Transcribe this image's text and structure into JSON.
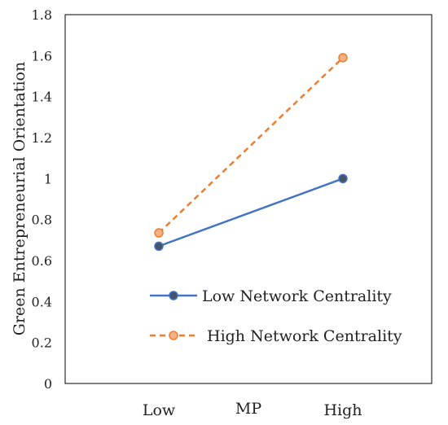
{
  "chart_data": {
    "type": "line",
    "ylabel": "Green Entrepreneurial Orientation",
    "xlabel": "MP",
    "categories": [
      "Low",
      "High"
    ],
    "ylim": [
      0,
      1.8
    ],
    "yticks": [
      "0",
      "0.2",
      "0.4",
      "0.6",
      "0.8",
      "1",
      "1.2",
      "1.4",
      "1.6",
      "1.8"
    ],
    "grid": false,
    "legend_position": "lower-right",
    "series": [
      {
        "name": "Low Network Centrality",
        "values": [
          0.67,
          1.0
        ],
        "color": "#4472C4",
        "marker_color": "#44546A",
        "dash": "solid"
      },
      {
        "name": "High Network Centrality",
        "values": [
          0.735,
          1.59
        ],
        "color": "#ED7D31",
        "marker_color": "#F4B183",
        "dash": "dashed"
      }
    ]
  }
}
